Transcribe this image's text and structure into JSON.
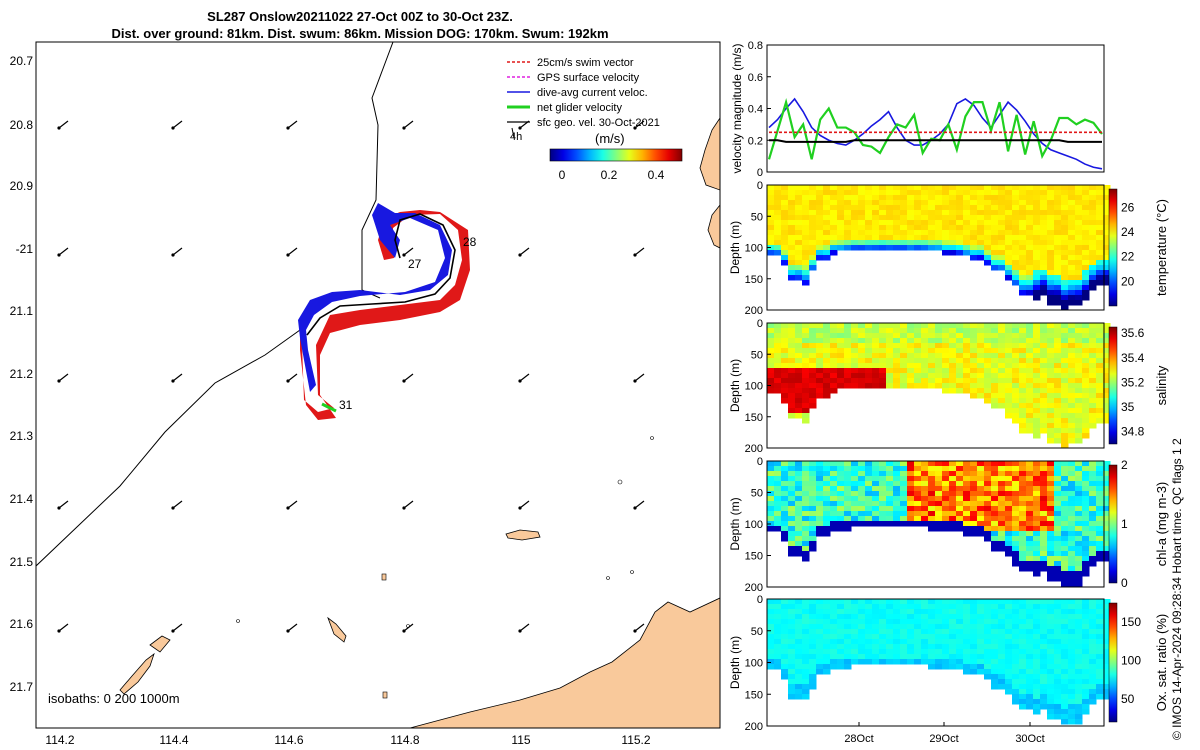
{
  "title_line1": "SL287 Onslow20211022 27-Oct 00Z to 30-Oct 23Z.",
  "title_line2": "Dist. over ground: 81km. Dist. swum: 86km. Mission DOG: 170km. Swum: 192km",
  "credit": "© IMOS 14-Apr-2024 09:28:34 Hobart time. QC flags 1  2",
  "colors": {
    "swim": "#e01818",
    "gps": "#e020e0",
    "dive": "#1818e0",
    "net": "#20d020",
    "land": "#f9c99b",
    "track": "#000000"
  },
  "map": {
    "legend": [
      {
        "label": "25cm/s swim vector",
        "color": "#e01818",
        "style": "dashed"
      },
      {
        "label": "GPS surface velocity",
        "color": "#e020e0",
        "style": "dashed"
      },
      {
        "label": "dive-avg current veloc.",
        "color": "#1818e0",
        "style": "solid"
      },
      {
        "label": "net glider velocity",
        "color": "#20d020",
        "style": "thick"
      },
      {
        "label": "sfc geo. vel. 30-Oct-2021",
        "color": "#000000",
        "style": "solid"
      }
    ],
    "scale_arrow_label": "4h",
    "colorbar_label": "(m/s)",
    "colorbar_ticks": [
      "0",
      "0.2",
      "0.4"
    ],
    "lat_ticks": [
      "20.7",
      "20.8",
      "20.9",
      "-21",
      "21.1",
      "21.2",
      "21.3",
      "21.4",
      "21.5",
      "21.6",
      "21.7"
    ],
    "lon_ticks": [
      "114.2",
      "114.4",
      "114.6",
      "114.8",
      "115",
      "115.2"
    ],
    "day_labels": [
      "27",
      "28",
      "31"
    ],
    "isobath_note": "isobaths: 0   200  1000m"
  },
  "chart_data": [
    {
      "type": "line",
      "title": "",
      "ylabel": "velocity magnitude (m/s)",
      "ylim": [
        0,
        0.8
      ],
      "yticks": [
        "0",
        "0.2",
        "0.4",
        "0.6",
        "0.8"
      ],
      "x": [
        "27.0",
        "27.1",
        "27.2",
        "27.3",
        "27.4",
        "27.5",
        "27.6",
        "27.7",
        "27.8",
        "27.9",
        "28.0",
        "28.1",
        "28.2",
        "28.3",
        "28.4",
        "28.5",
        "28.6",
        "28.7",
        "28.8",
        "28.9",
        "29.0",
        "29.1",
        "29.2",
        "29.3",
        "29.4",
        "29.5",
        "29.6",
        "29.7",
        "29.8",
        "29.9",
        "30.0",
        "30.1",
        "30.2",
        "30.3",
        "30.4",
        "30.5",
        "30.6",
        "30.7",
        "30.8",
        "30.9"
      ],
      "series": [
        {
          "color": "#1818e0",
          "values": [
            0.28,
            0.33,
            0.4,
            0.46,
            0.38,
            0.28,
            0.23,
            0.2,
            0.18,
            0.17,
            0.2,
            0.24,
            0.29,
            0.33,
            0.38,
            0.28,
            0.2,
            0.17,
            0.17,
            0.2,
            0.24,
            0.3,
            0.43,
            0.46,
            0.42,
            0.34,
            0.28,
            0.36,
            0.44,
            0.39,
            0.32,
            0.24,
            0.18,
            0.14,
            0.12,
            0.1,
            0.08,
            0.05,
            0.03,
            0.02
          ]
        },
        {
          "color": "#20d020",
          "values": [
            0.08,
            0.26,
            0.44,
            0.22,
            0.3,
            0.08,
            0.33,
            0.4,
            0.28,
            0.28,
            0.25,
            0.17,
            0.16,
            0.12,
            0.22,
            0.3,
            0.28,
            0.36,
            0.12,
            0.21,
            0.2,
            0.3,
            0.14,
            0.35,
            0.44,
            0.44,
            0.26,
            0.44,
            0.13,
            0.36,
            0.11,
            0.32,
            0.1,
            0.2,
            0.34,
            0.34,
            0.3,
            0.33,
            0.31,
            0.24
          ]
        },
        {
          "color": "#e01818",
          "values": [
            0.25,
            0.25,
            0.25,
            0.25,
            0.25,
            0.25,
            0.25,
            0.25,
            0.25,
            0.25,
            0.25,
            0.25,
            0.25,
            0.25,
            0.25,
            0.25,
            0.25,
            0.25,
            0.25,
            0.25,
            0.25,
            0.25,
            0.25,
            0.25,
            0.25,
            0.25,
            0.25,
            0.25,
            0.25,
            0.25,
            0.25,
            0.25,
            0.25,
            0.25,
            0.25,
            0.25,
            0.25,
            0.25,
            0.25,
            0.25
          ]
        },
        {
          "color": "#000000",
          "values": [
            0.2,
            0.2,
            0.19,
            0.19,
            0.19,
            0.19,
            0.19,
            0.19,
            0.19,
            0.19,
            0.2,
            0.2,
            0.2,
            0.2,
            0.2,
            0.2,
            0.2,
            0.2,
            0.2,
            0.2,
            0.2,
            0.2,
            0.2,
            0.2,
            0.2,
            0.2,
            0.2,
            0.2,
            0.2,
            0.2,
            0.2,
            0.2,
            0.2,
            0.2,
            0.2,
            0.19,
            0.19,
            0.19,
            0.19,
            0.19
          ]
        }
      ]
    },
    {
      "type": "heatmap",
      "ylabel": "Depth (m)",
      "cbar_label": "temperature (°C)",
      "ylim": [
        200,
        0
      ],
      "yticks": [
        "0",
        "50",
        "100",
        "150",
        "200"
      ],
      "cbar_ticks": [
        "20",
        "22",
        "24",
        "26"
      ],
      "crange": [
        18,
        27.5
      ]
    },
    {
      "type": "heatmap",
      "ylabel": "Depth (m)",
      "cbar_label": "salinity",
      "ylim": [
        200,
        0
      ],
      "yticks": [
        "0",
        "50",
        "100",
        "150",
        "200"
      ],
      "cbar_ticks": [
        "34.8",
        "35",
        "35.2",
        "35.4",
        "35.6"
      ],
      "crange": [
        34.7,
        35.65
      ]
    },
    {
      "type": "heatmap",
      "ylabel": "Depth (m)",
      "cbar_label": "chl-a (mg m-3)",
      "ylim": [
        200,
        0
      ],
      "yticks": [
        "0",
        "50",
        "100",
        "150",
        "200"
      ],
      "cbar_ticks": [
        "0",
        "1",
        "2"
      ],
      "crange": [
        0,
        2
      ]
    },
    {
      "type": "heatmap",
      "ylabel": "Depth (m)",
      "cbar_label": "Ox. sat. ratio (%)",
      "ylim": [
        200,
        0
      ],
      "yticks": [
        "0",
        "50",
        "100",
        "150",
        "200"
      ],
      "cbar_ticks": [
        "50",
        "100",
        "150"
      ],
      "crange": [
        20,
        175
      ],
      "xticks": [
        "28Oct",
        "29Oct",
        "30Oct"
      ]
    }
  ]
}
